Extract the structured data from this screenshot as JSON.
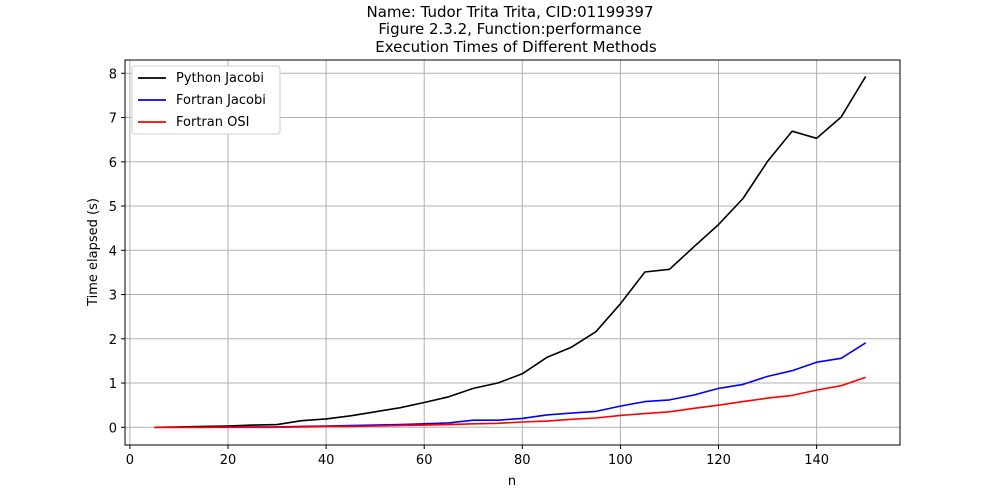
{
  "chart_data": {
    "type": "line",
    "title": [
      "Name: Tudor Trita Trita, CID:01199397",
      "Figure 2.3.2, Function:performance",
      "Execution Times of Different Methods"
    ],
    "xlabel": "n",
    "ylabel": "Time elapsed (s)",
    "xlim": [
      -1,
      157
    ],
    "ylim": [
      -0.4,
      8.3
    ],
    "xticks": [
      0,
      20,
      40,
      60,
      80,
      100,
      120,
      140
    ],
    "yticks": [
      0,
      1,
      2,
      3,
      4,
      5,
      6,
      7,
      8
    ],
    "grid": true,
    "legend_position": "top-left",
    "x": [
      5,
      10,
      15,
      20,
      25,
      30,
      35,
      40,
      45,
      50,
      55,
      60,
      65,
      70,
      75,
      80,
      85,
      90,
      95,
      100,
      105,
      110,
      115,
      120,
      125,
      130,
      135,
      140,
      145,
      150
    ],
    "series": [
      {
        "name": "Python Jacobi",
        "color": "#000000",
        "values": [
          0.0,
          0.01,
          0.02,
          0.03,
          0.05,
          0.06,
          0.15,
          0.19,
          0.26,
          0.35,
          0.44,
          0.56,
          0.69,
          0.88,
          1.0,
          1.21,
          1.58,
          1.81,
          2.16,
          2.79,
          3.51,
          3.57,
          4.08,
          4.58,
          5.17,
          6.01,
          6.69,
          6.53,
          7.01,
          7.93
        ]
      },
      {
        "name": "Fortran Jacobi",
        "color": "#0000ff",
        "values": [
          0.0,
          0.0,
          0.0,
          0.01,
          0.01,
          0.01,
          0.02,
          0.03,
          0.04,
          0.05,
          0.06,
          0.08,
          0.1,
          0.16,
          0.16,
          0.2,
          0.28,
          0.32,
          0.36,
          0.48,
          0.58,
          0.62,
          0.73,
          0.88,
          0.97,
          1.15,
          1.28,
          1.47,
          1.56,
          1.91
        ]
      },
      {
        "name": "Fortran OSI",
        "color": "#ff0000",
        "values": [
          0.0,
          0.0,
          0.0,
          0.0,
          0.0,
          0.0,
          0.01,
          0.02,
          0.02,
          0.03,
          0.04,
          0.05,
          0.06,
          0.08,
          0.09,
          0.12,
          0.14,
          0.18,
          0.21,
          0.27,
          0.31,
          0.35,
          0.43,
          0.5,
          0.58,
          0.66,
          0.72,
          0.84,
          0.94,
          1.13
        ]
      }
    ]
  }
}
